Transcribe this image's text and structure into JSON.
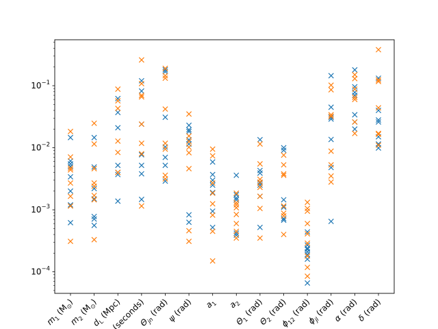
{
  "chart_data": {
    "type": "scatter",
    "title": "",
    "xlabel": "",
    "ylabel": "",
    "yscale": "log",
    "ylim": [
      4.5e-05,
      0.55
    ],
    "y_ticks": [
      0.0001,
      0.001,
      0.01,
      0.1
    ],
    "y_tick_labels": [
      {
        "base": "10",
        "exp": "−4"
      },
      {
        "base": "10",
        "exp": "−3"
      },
      {
        "base": "10",
        "exp": "−2"
      },
      {
        "base": "10",
        "exp": "−1"
      }
    ],
    "categories": [
      "m1 (M⊙)",
      "m2 (M⊙)",
      "dL (Mpc)",
      "tc (seconds)",
      "Θjn (rad)",
      "ψ (rad)",
      "a1",
      "a2",
      "Θ1 (rad)",
      "Θ2 (rad)",
      "ϕ12 (rad)",
      "ϕjl (rad)",
      "α (rad)",
      "δ (rad)"
    ],
    "category_labels": [
      {
        "main": "m",
        "sub": "1",
        "tail": " (M",
        "sub2": "⊙",
        "end": ")"
      },
      {
        "main": "m",
        "sub": "2",
        "tail": " (M",
        "sub2": "⊙",
        "end": ")"
      },
      {
        "main": "d",
        "sub": "L",
        "tail": " (Mpc)",
        "sub2": "",
        "end": ""
      },
      {
        "main": "t",
        "sub": "c",
        "tail": " (seconds)",
        "sub2": "",
        "end": ""
      },
      {
        "main": "Θ",
        "sub": "jn",
        "tail": " (rad)",
        "sub2": "",
        "end": ""
      },
      {
        "main": "ψ",
        "sub": "",
        "tail": " (rad)",
        "sub2": "",
        "end": ""
      },
      {
        "main": "a",
        "sub": "1",
        "tail": "",
        "sub2": "",
        "end": ""
      },
      {
        "main": "a",
        "sub": "2",
        "tail": "",
        "sub2": "",
        "end": ""
      },
      {
        "main": "Θ",
        "sub": "1",
        "tail": " (rad)",
        "sub2": "",
        "end": ""
      },
      {
        "main": "Θ",
        "sub": "2",
        "tail": " (rad)",
        "sub2": "",
        "end": ""
      },
      {
        "main": "ϕ",
        "sub": "12",
        "tail": " (rad)",
        "sub2": "",
        "end": ""
      },
      {
        "main": "ϕ",
        "sub": "jl",
        "tail": " (rad)",
        "sub2": "",
        "end": ""
      },
      {
        "main": "α",
        "sub": "",
        "tail": " (rad)",
        "sub2": "",
        "end": ""
      },
      {
        "main": "δ",
        "sub": "",
        "tail": " (rad)",
        "sub2": "",
        "end": ""
      }
    ],
    "marker": "x",
    "grid": false,
    "legend": "none",
    "series": [
      {
        "color": "#1f77b4",
        "values": [
          [
            0.0146,
            0.0061,
            0.0055,
            0.005,
            0.0034,
            0.002,
            0.0012,
            0.00062
          ],
          [
            0.0146,
            0.0049,
            0.0022,
            0.0015,
            0.00078,
            0.00071,
            0.00056
          ],
          [
            0.062,
            0.037,
            0.021,
            0.0052,
            0.004,
            0.0037,
            0.00138
          ],
          [
            0.12,
            0.082,
            0.024,
            0.0077,
            0.0052,
            0.0038,
            0.00147
          ],
          [
            0.18,
            0.168,
            0.031,
            0.0103,
            0.007,
            0.0052,
            0.0029
          ],
          [
            0.023,
            0.0195,
            0.0183,
            0.0134,
            0.0115,
            0.00083,
            0.00063
          ],
          [
            0.0059,
            0.0037,
            0.003,
            0.0025,
            0.0019,
            0.00095,
            0.00052
          ],
          [
            0.0036,
            0.00175,
            0.00155,
            0.00145,
            0.00042,
            0.00039
          ],
          [
            0.0135,
            0.0043,
            0.0039,
            0.0027,
            0.0025,
            0.00165,
            0.00052
          ],
          [
            0.01,
            0.0091,
            0.00145,
            0.0011,
            0.00072,
            0.00068
          ],
          [
            0.00044,
            0.00027,
            0.00024,
            0.00023,
            0.00021,
            0.00019,
            0.00016,
            6.6e-05
          ],
          [
            0.145,
            0.045,
            0.031,
            0.029,
            0.0136,
            0.0048,
            0.00065
          ],
          [
            0.18,
            0.096,
            0.078,
            0.07,
            0.034,
            0.026,
            0.02
          ],
          [
            0.132,
            0.04,
            0.028,
            0.026,
            0.015,
            0.0115,
            0.0099
          ]
        ]
      },
      {
        "color": "#ff7f0e",
        "values": [
          [
            0.0183,
            0.0071,
            0.0047,
            0.0044,
            0.0027,
            0.00165,
            0.00115,
            0.00031
          ],
          [
            0.0248,
            0.0115,
            0.0046,
            0.0027,
            0.0024,
            0.0017,
            0.00145,
            0.00033
          ],
          [
            0.088,
            0.057,
            0.043,
            0.0128,
            0.0084,
            0.004
          ],
          [
            0.26,
            0.108,
            0.07,
            0.066,
            0.024,
            0.0118,
            0.008,
            0.00115
          ],
          [
            0.19,
            0.145,
            0.132,
            0.042,
            0.0118,
            0.0095,
            0.0036,
            0.00315
          ],
          [
            0.035,
            0.0155,
            0.0126,
            0.0102,
            0.0083,
            0.0046,
            0.00046,
            0.00031
          ],
          [
            0.0095,
            0.0074,
            0.0027,
            0.00185,
            0.00125,
            0.00082,
            0.00045,
            0.00015
          ],
          [
            0.00185,
            0.0013,
            0.0012,
            0.00108,
            0.00084,
            0.0006,
            0.00045,
            0.00035
          ],
          [
            0.0115,
            0.0055,
            0.0031,
            0.0028,
            0.0023,
            0.00165,
            0.00105,
            0.00035
          ],
          [
            0.0076,
            0.0053,
            0.0038,
            0.0036,
            0.00115,
            0.00088,
            0.0008,
            0.0004
          ],
          [
            0.00132,
            0.00105,
            0.00095,
            0.0006,
            0.00041,
            0.00029,
            0.00018,
            0.000118,
            8.5e-05
          ],
          [
            0.102,
            0.086,
            0.034,
            0.032,
            0.0088,
            0.0053,
            0.0035,
            0.0028
          ],
          [
            0.15,
            0.13,
            0.088,
            0.065,
            0.06,
            0.026,
            0.017
          ],
          [
            0.38,
            0.124,
            0.117,
            0.044,
            0.017,
            0.0165,
            0.011
          ]
        ]
      }
    ]
  }
}
